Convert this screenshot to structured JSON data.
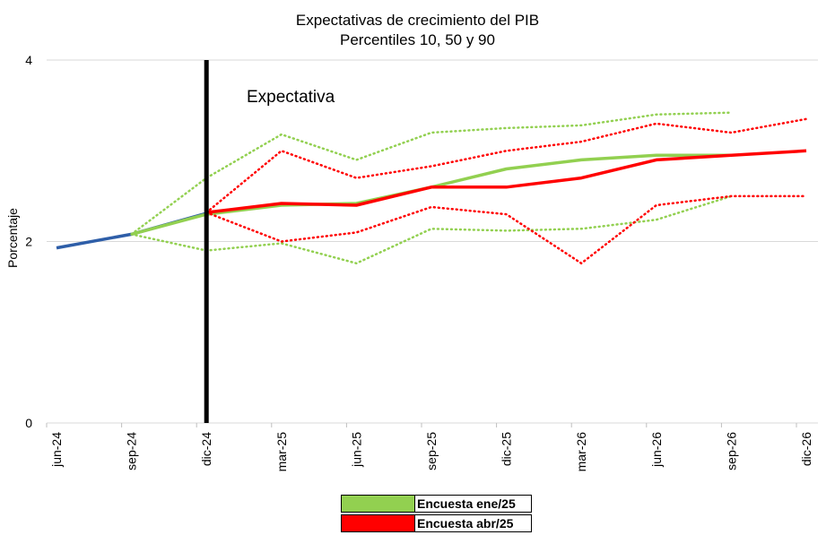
{
  "chart_data": {
    "type": "line",
    "title": "Expectativas de crecimiento del PIB",
    "subtitle": "Percentiles 10, 50 y 90",
    "ylabel": "Porcentaje",
    "xlabel": "",
    "ylim": [
      0,
      4
    ],
    "yticks": [
      "0",
      "2",
      "4"
    ],
    "categories": [
      "jun-24",
      "sep-24",
      "dic-24",
      "mar-25",
      "jun-25",
      "sep-25",
      "dic-25",
      "mar-26",
      "jun-26",
      "sep-26",
      "dic-26"
    ],
    "annotation": "Expectativa",
    "vertical_line_at": "dic-24",
    "grid": "horizontal",
    "legend_position": "bottom",
    "series": [
      {
        "name": "",
        "style": "solid",
        "color": "#2e5ea8",
        "values": [
          1.93,
          2.08,
          2.31,
          null,
          null,
          null,
          null,
          null,
          null,
          null,
          null
        ]
      },
      {
        "name": "Encuesta ene/25",
        "style": "solid",
        "color": "#92d050",
        "values": [
          null,
          2.08,
          2.3,
          2.4,
          2.42,
          2.6,
          2.8,
          2.9,
          2.95,
          2.95,
          null
        ]
      },
      {
        "name": "",
        "style": "dotted",
        "color": "#92d050",
        "values": [
          null,
          2.08,
          2.7,
          3.18,
          2.9,
          3.2,
          3.25,
          3.28,
          3.4,
          3.42,
          null
        ]
      },
      {
        "name": "",
        "style": "dotted",
        "color": "#92d050",
        "values": [
          null,
          2.08,
          1.9,
          1.98,
          1.76,
          2.14,
          2.12,
          2.14,
          2.24,
          2.5,
          null
        ]
      },
      {
        "name": "Encuesta abr/25",
        "style": "solid",
        "color": "#ff0000",
        "values": [
          null,
          null,
          2.32,
          2.42,
          2.4,
          2.6,
          2.6,
          2.7,
          2.9,
          2.95,
          3.0
        ]
      },
      {
        "name": "",
        "style": "dotted",
        "color": "#ff0000",
        "values": [
          null,
          null,
          2.32,
          3.0,
          2.7,
          2.83,
          3.0,
          3.1,
          3.3,
          3.2,
          3.35
        ]
      },
      {
        "name": "",
        "style": "dotted",
        "color": "#ff0000",
        "values": [
          null,
          null,
          2.32,
          2.0,
          2.1,
          2.38,
          2.3,
          1.76,
          2.4,
          2.5,
          2.5
        ]
      }
    ],
    "legend": [
      {
        "label": "Encuesta ene/25",
        "color": "#92d050"
      },
      {
        "label": "Encuesta abr/25",
        "color": "#ff0000"
      }
    ]
  }
}
